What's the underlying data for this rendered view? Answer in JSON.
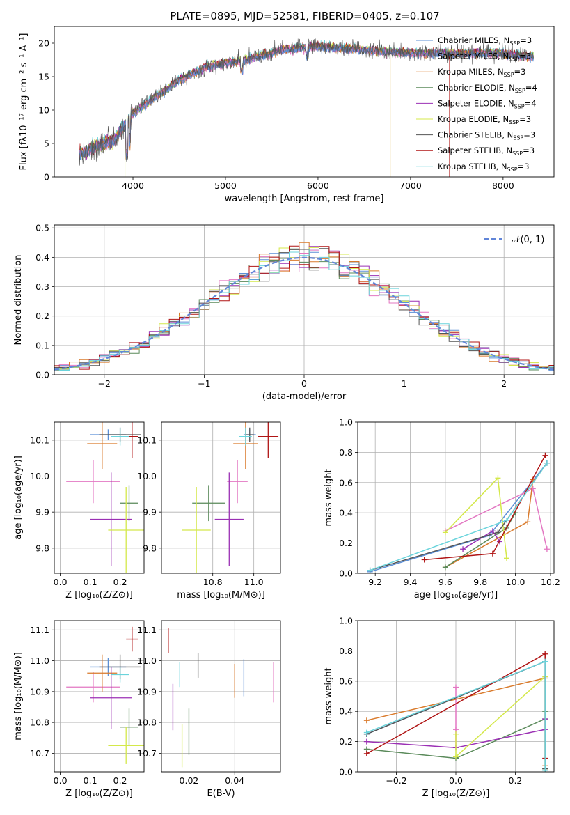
{
  "figure_title": "PLATE=0895, MJD=52581, FIBERID=0405, z=0.107",
  "colors": {
    "Chabrier MILES": "#5b8fd6",
    "Salpeter MILES": "#e377c2",
    "Kroupa MILES": "#d97a2b",
    "Chabrier ELODIE": "#5a8a5a",
    "Salpeter ELODIE": "#9b30b4",
    "Kroupa ELODIE": "#d4e84a",
    "Chabrier STELIB": "#555555",
    "Salpeter STELIB": "#b01515",
    "Kroupa STELIB": "#6ad4dc"
  },
  "chart_data": [
    {
      "type": "line",
      "title": "PLATE=0895, MJD=52581, FIBERID=0405, z=0.107",
      "xlabel": "wavelength [Angstrom, rest frame]",
      "ylabel": "Flux [fλ10⁻¹⁷ erg cm⁻² s⁻¹ A⁻¹]",
      "xlim": [
        3150,
        8550
      ],
      "ylim": [
        0,
        22.5
      ],
      "xticks": [
        "4000",
        "5000",
        "6000",
        "7000",
        "8000"
      ],
      "yticks": [
        "0",
        "5",
        "10",
        "15",
        "20"
      ],
      "grid": false,
      "legend": "right",
      "continuum_x": [
        3450,
        3600,
        3800,
        4000,
        4300,
        4500,
        4800,
        5200,
        5600,
        6000,
        6500,
        7000,
        7500,
        8000,
        8300
      ],
      "continuum_y": [
        3.5,
        4.5,
        5.5,
        9.5,
        12.5,
        14.5,
        16.5,
        17.5,
        19,
        19.5,
        19,
        18.5,
        18.5,
        18.5,
        18
      ],
      "series": [
        {
          "name": "Chabrier MILES, NSSP=3"
        },
        {
          "name": "Salpeter MILES, NSSP=3"
        },
        {
          "name": "Kroupa MILES, NSSP=3"
        },
        {
          "name": "Chabrier ELODIE, NSSP=4"
        },
        {
          "name": "Salpeter ELODIE, NSSP=4"
        },
        {
          "name": "Kroupa ELODIE, NSSP=3"
        },
        {
          "name": "Chabrier STELIB, NSSP=3"
        },
        {
          "name": "Salpeter STELIB, NSSP=3"
        },
        {
          "name": "Kroupa STELIB, NSSP=3"
        }
      ]
    },
    {
      "type": "area",
      "xlabel": "(data-model)/error",
      "ylabel": "Normed distribution",
      "xlim": [
        -2.5,
        2.5
      ],
      "ylim": [
        0,
        0.51
      ],
      "xticks": [
        "−2",
        "−1",
        "0",
        "1",
        "2"
      ],
      "yticks": [
        "0.0",
        "0.1",
        "0.2",
        "0.3",
        "0.4",
        "0.5"
      ],
      "grid": true,
      "legend": "top-right",
      "reference": "𝒩(0, 1)",
      "bin_width": 0.1,
      "histogram": "stepped histograms, one per model, approximately normal"
    },
    {
      "type": "scatter",
      "xlabel": "Z [log₁₀(Z/Z⊙)]",
      "ylabel": "age  [log₁₀(age/yr)]",
      "xlim": [
        -0.02,
        0.28
      ],
      "ylim": [
        9.73,
        10.15
      ],
      "xticks": [
        "0.0",
        "0.1",
        "0.2"
      ],
      "yticks": [
        "9.8",
        "9.9",
        "10.0",
        "10.1"
      ],
      "grid": true,
      "points": [
        {
          "model": "Chabrier MILES",
          "x": 0.16,
          "xerr": 0.06,
          "y": 10.115,
          "yerr": 0.015
        },
        {
          "model": "Salpeter MILES",
          "x": 0.11,
          "xerr": 0.09,
          "y": 9.985,
          "yerr": 0.06
        },
        {
          "model": "Kroupa MILES",
          "x": 0.14,
          "xerr": 0.05,
          "y": 10.09,
          "yerr": 0.07
        },
        {
          "model": "Chabrier ELODIE",
          "x": 0.23,
          "xerr": 0.03,
          "y": 9.925,
          "yerr": 0.05
        },
        {
          "model": "Salpeter ELODIE",
          "x": 0.17,
          "xerr": 0.07,
          "y": 9.88,
          "yerr": 0.13
        },
        {
          "model": "Kroupa ELODIE",
          "x": 0.22,
          "xerr": 0.06,
          "y": 9.85,
          "yerr": 0.12
        },
        {
          "model": "Chabrier STELIB",
          "x": 0.2,
          "xerr": 0.07,
          "y": 10.115,
          "yerr": 0.02
        },
        {
          "model": "Salpeter STELIB",
          "x": 0.24,
          "xerr": 0.02,
          "y": 10.11,
          "yerr": 0.06
        },
        {
          "model": "Kroupa STELIB",
          "x": 0.2,
          "xerr": 0.03,
          "y": 10.11,
          "yerr": 0.025
        }
      ]
    },
    {
      "type": "scatter",
      "xlabel": "mass [log₁₀(M/M⊙)]",
      "ylabel": "",
      "xlim": [
        10.55,
        11.13
      ],
      "ylim": [
        9.73,
        10.15
      ],
      "xticks": [
        "10.8",
        "11.0"
      ],
      "yticks": [
        "9.8",
        "9.9",
        "10.0",
        "10.1"
      ],
      "grid": true,
      "points": [
        {
          "model": "Chabrier MILES",
          "x": 10.98,
          "xerr": 0.03,
          "y": 10.115,
          "yerr": 0.015
        },
        {
          "model": "Salpeter MILES",
          "x": 10.92,
          "xerr": 0.05,
          "y": 9.985,
          "yerr": 0.06
        },
        {
          "model": "Kroupa MILES",
          "x": 10.96,
          "xerr": 0.06,
          "y": 10.09,
          "yerr": 0.07
        },
        {
          "model": "Chabrier ELODIE",
          "x": 10.78,
          "xerr": 0.08,
          "y": 9.925,
          "yerr": 0.05
        },
        {
          "model": "Salpeter ELODIE",
          "x": 10.88,
          "xerr": 0.07,
          "y": 9.88,
          "yerr": 0.13
        },
        {
          "model": "Kroupa ELODIE",
          "x": 10.72,
          "xerr": 0.07,
          "y": 9.85,
          "yerr": 0.12
        },
        {
          "model": "Chabrier STELIB",
          "x": 10.98,
          "xerr": 0.02,
          "y": 10.115,
          "yerr": 0.02
        },
        {
          "model": "Salpeter STELIB",
          "x": 11.07,
          "xerr": 0.05,
          "y": 10.11,
          "yerr": 0.06
        },
        {
          "model": "Kroupa STELIB",
          "x": 10.96,
          "xerr": 0.03,
          "y": 10.11,
          "yerr": 0.025
        }
      ]
    },
    {
      "type": "line",
      "xlabel": "age  [log₁₀(age/yr)]",
      "ylabel": "mass weight",
      "xlim": [
        9.1,
        10.22
      ],
      "ylim": [
        0,
        1.0
      ],
      "xticks": [
        "9.2",
        "9.4",
        "9.6",
        "9.8",
        "10.0",
        "10.2"
      ],
      "yticks": [
        "0.0",
        "0.2",
        "0.4",
        "0.6",
        "0.8",
        "1.0"
      ],
      "grid": true,
      "series": [
        {
          "model": "Chabrier MILES",
          "x": [
            9.17,
            9.85,
            10.18
          ],
          "y": [
            0.01,
            0.25,
            0.73
          ]
        },
        {
          "model": "Salpeter MILES",
          "x": [
            9.6,
            10.1,
            10.18
          ],
          "y": [
            0.28,
            0.56,
            0.16
          ]
        },
        {
          "model": "Kroupa MILES",
          "x": [
            9.6,
            10.07,
            10.1
          ],
          "y": [
            0.04,
            0.34,
            0.62
          ]
        },
        {
          "model": "Chabrier ELODIE",
          "x": [
            9.6,
            9.95,
            10.0
          ],
          "y": [
            0.04,
            0.3,
            0.4
          ]
        },
        {
          "model": "Salpeter ELODIE",
          "x": [
            9.7,
            9.87,
            9.91
          ],
          "y": [
            0.16,
            0.28,
            0.21
          ]
        },
        {
          "model": "Kroupa ELODIE",
          "x": [
            9.6,
            9.9,
            9.95
          ],
          "y": [
            0.27,
            0.63,
            0.1
          ]
        },
        {
          "model": "Chabrier STELIB",
          "x": [
            9.17,
            9.9,
            10.18
          ],
          "y": [
            0.02,
            0.27,
            0.73
          ]
        },
        {
          "model": "Salpeter STELIB",
          "x": [
            9.48,
            9.87,
            10.17
          ],
          "y": [
            0.09,
            0.13,
            0.78
          ]
        },
        {
          "model": "Kroupa STELIB",
          "x": [
            9.17,
            9.95,
            10.18
          ],
          "y": [
            0.02,
            0.35,
            0.73
          ]
        }
      ]
    },
    {
      "type": "scatter",
      "xlabel": "Z [log₁₀(Z/Z⊙)]",
      "ylabel": "mass [log₁₀(M/M⊙)]",
      "xlim": [
        -0.02,
        0.28
      ],
      "ylim": [
        10.64,
        11.13
      ],
      "xticks": [
        "0.0",
        "0.1",
        "0.2"
      ],
      "yticks": [
        "10.7",
        "10.8",
        "10.9",
        "11.0",
        "11.1"
      ],
      "grid": true,
      "points": [
        {
          "model": "Chabrier MILES",
          "x": 0.16,
          "xerr": 0.06,
          "y": 10.98,
          "yerr": 0.03
        },
        {
          "model": "Salpeter MILES",
          "x": 0.11,
          "xerr": 0.09,
          "y": 10.915,
          "yerr": 0.05
        },
        {
          "model": "Kroupa MILES",
          "x": 0.14,
          "xerr": 0.05,
          "y": 10.96,
          "yerr": 0.06
        },
        {
          "model": "Chabrier ELODIE",
          "x": 0.23,
          "xerr": 0.03,
          "y": 10.785,
          "yerr": 0.06
        },
        {
          "model": "Salpeter ELODIE",
          "x": 0.17,
          "xerr": 0.07,
          "y": 10.88,
          "yerr": 0.1
        },
        {
          "model": "Kroupa ELODIE",
          "x": 0.22,
          "xerr": 0.06,
          "y": 10.725,
          "yerr": 0.06
        },
        {
          "model": "Chabrier STELIB",
          "x": 0.2,
          "xerr": 0.07,
          "y": 10.98,
          "yerr": 0.04
        },
        {
          "model": "Salpeter STELIB",
          "x": 0.24,
          "xerr": 0.02,
          "y": 11.07,
          "yerr": 0.04
        },
        {
          "model": "Kroupa STELIB",
          "x": 0.2,
          "xerr": 0.03,
          "y": 10.955,
          "yerr": 0.025
        }
      ]
    },
    {
      "type": "scatter",
      "xlabel": "E(B-V)",
      "ylabel": "",
      "xlim": [
        0.008,
        0.06
      ],
      "ylim": [
        10.64,
        11.13
      ],
      "xticks": [
        "0.02",
        "0.04"
      ],
      "yticks": [
        "10.7",
        "10.8",
        "10.9",
        "11.0",
        "11.1"
      ],
      "grid": true,
      "points": [
        {
          "model": "Chabrier MILES",
          "x": 0.044,
          "y": 10.945,
          "yerr": 0.06
        },
        {
          "model": "Salpeter MILES",
          "x": 0.057,
          "y": 10.93,
          "yerr": 0.065
        },
        {
          "model": "Kroupa MILES",
          "x": 0.04,
          "y": 10.935,
          "yerr": 0.055
        },
        {
          "model": "Chabrier ELODIE",
          "x": 0.02,
          "y": 10.77,
          "yerr": 0.075
        },
        {
          "model": "Salpeter ELODIE",
          "x": 0.013,
          "y": 10.85,
          "yerr": 0.075
        },
        {
          "model": "Kroupa ELODIE",
          "x": 0.017,
          "y": 10.725,
          "yerr": 0.07
        },
        {
          "model": "Chabrier STELIB",
          "x": 0.024,
          "y": 10.985,
          "yerr": 0.04
        },
        {
          "model": "Salpeter STELIB",
          "x": 0.011,
          "y": 11.065,
          "yerr": 0.04
        },
        {
          "model": "Kroupa STELIB",
          "x": 0.016,
          "y": 10.955,
          "yerr": 0.04
        }
      ]
    },
    {
      "type": "line",
      "xlabel": "Z [log₁₀(Z/Z⊙)]",
      "ylabel": "mass weight",
      "xlim": [
        -0.33,
        0.33
      ],
      "ylim": [
        0,
        1.0
      ],
      "xticks": [
        "−0.2",
        "0.0",
        "0.2"
      ],
      "yticks": [
        "0.0",
        "0.2",
        "0.4",
        "0.6",
        "0.8",
        "1.0"
      ],
      "grid": true,
      "series": [
        {
          "model": "Chabrier MILES",
          "x": [
            -0.3,
            0.3,
            0.3
          ],
          "y": [
            0.25,
            0.73,
            0.02
          ]
        },
        {
          "model": "Salpeter MILES",
          "x": [
            0.0,
            0.0,
            0.0
          ],
          "y": [
            0.56,
            0.28,
            0.16
          ]
        },
        {
          "model": "Kroupa MILES",
          "x": [
            -0.3,
            0.3,
            0.3
          ],
          "y": [
            0.34,
            0.62,
            0.04
          ]
        },
        {
          "model": "Chabrier ELODIE",
          "x": [
            -0.3,
            0.0,
            0.3,
            0.3
          ],
          "y": [
            0.15,
            0.09,
            0.35,
            0.4
          ]
        },
        {
          "model": "Salpeter ELODIE",
          "x": [
            -0.3,
            0.0,
            0.3,
            0.3
          ],
          "y": [
            0.2,
            0.16,
            0.28,
            0.35
          ]
        },
        {
          "model": "Kroupa ELODIE",
          "x": [
            0.0,
            0.0,
            0.3,
            0.3
          ],
          "y": [
            0.25,
            0.1,
            0.63,
            0.02
          ]
        },
        {
          "model": "Chabrier STELIB",
          "x": [
            -0.3,
            0.3,
            0.3
          ],
          "y": [
            0.25,
            0.73,
            0.02
          ]
        },
        {
          "model": "Salpeter STELIB",
          "x": [
            -0.3,
            0.3,
            0.3
          ],
          "y": [
            0.12,
            0.78,
            0.09
          ]
        },
        {
          "model": "Kroupa STELIB",
          "x": [
            -0.3,
            0.3,
            0.3
          ],
          "y": [
            0.26,
            0.73,
            0.01
          ]
        }
      ]
    }
  ]
}
